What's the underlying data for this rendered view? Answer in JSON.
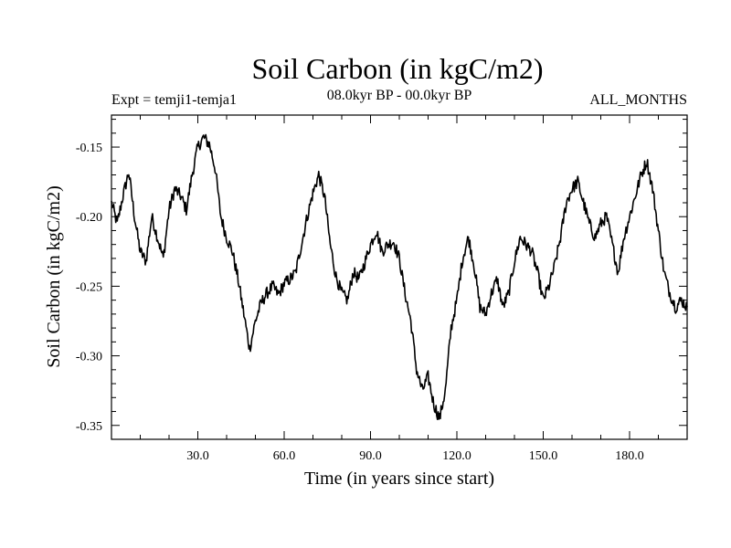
{
  "chart_data": {
    "type": "line",
    "title": "Soil Carbon (in kgC/m2)",
    "subtitle_left": "Expt = temji1-temja1",
    "subtitle_center": "08.0kyr BP - 00.0kyr BP",
    "subtitle_right": "ALL_MONTHS",
    "xlabel": "Time (in years since start)",
    "ylabel": "Soil Carbon (in kgC/m2)",
    "xlim": [
      0,
      200
    ],
    "ylim": [
      -0.36,
      -0.127
    ],
    "xticks": [
      30,
      60,
      90,
      120,
      150,
      180
    ],
    "xtick_labels": [
      "30.0",
      "60.0",
      "90.0",
      "120.0",
      "150.0",
      "180.0"
    ],
    "yticks": [
      -0.15,
      -0.2,
      -0.25,
      -0.3,
      -0.35
    ],
    "ytick_labels": [
      "-0.15",
      "-0.20",
      "-0.25",
      "-0.30",
      "-0.35"
    ],
    "series": [
      {
        "name": "Soil Carbon",
        "color": "#000000",
        "x": [
          0,
          2,
          4,
          6,
          8,
          10,
          12,
          14,
          16,
          18,
          20,
          22,
          24,
          26,
          28,
          30,
          32,
          34,
          36,
          38,
          40,
          42,
          44,
          46,
          48,
          50,
          52,
          54,
          56,
          58,
          60,
          62,
          64,
          66,
          68,
          70,
          72,
          74,
          76,
          78,
          80,
          82,
          84,
          86,
          88,
          90,
          92,
          94,
          96,
          98,
          100,
          102,
          104,
          106,
          108,
          110,
          112,
          114,
          116,
          118,
          120,
          122,
          124,
          126,
          128,
          130,
          132,
          134,
          136,
          138,
          140,
          142,
          144,
          146,
          148,
          150,
          152,
          154,
          156,
          158,
          160,
          162,
          164,
          166,
          168,
          170,
          172,
          174,
          176,
          178,
          180,
          182,
          184,
          186,
          188,
          190,
          192,
          194,
          196,
          198,
          200
        ],
        "values": [
          -0.19,
          -0.205,
          -0.185,
          -0.168,
          -0.2,
          -0.225,
          -0.232,
          -0.2,
          -0.215,
          -0.23,
          -0.195,
          -0.18,
          -0.185,
          -0.195,
          -0.17,
          -0.15,
          -0.143,
          -0.148,
          -0.165,
          -0.2,
          -0.215,
          -0.225,
          -0.245,
          -0.27,
          -0.295,
          -0.275,
          -0.262,
          -0.255,
          -0.25,
          -0.256,
          -0.248,
          -0.245,
          -0.24,
          -0.22,
          -0.2,
          -0.183,
          -0.17,
          -0.185,
          -0.22,
          -0.243,
          -0.255,
          -0.26,
          -0.24,
          -0.245,
          -0.233,
          -0.22,
          -0.21,
          -0.225,
          -0.22,
          -0.218,
          -0.23,
          -0.255,
          -0.275,
          -0.31,
          -0.325,
          -0.315,
          -0.335,
          -0.345,
          -0.325,
          -0.28,
          -0.26,
          -0.23,
          -0.215,
          -0.235,
          -0.265,
          -0.27,
          -0.255,
          -0.245,
          -0.265,
          -0.255,
          -0.232,
          -0.215,
          -0.22,
          -0.225,
          -0.24,
          -0.26,
          -0.25,
          -0.235,
          -0.215,
          -0.19,
          -0.18,
          -0.175,
          -0.19,
          -0.205,
          -0.215,
          -0.205,
          -0.2,
          -0.22,
          -0.24,
          -0.215,
          -0.2,
          -0.185,
          -0.17,
          -0.16,
          -0.18,
          -0.21,
          -0.24,
          -0.255,
          -0.265,
          -0.26,
          -0.265
        ]
      }
    ]
  }
}
